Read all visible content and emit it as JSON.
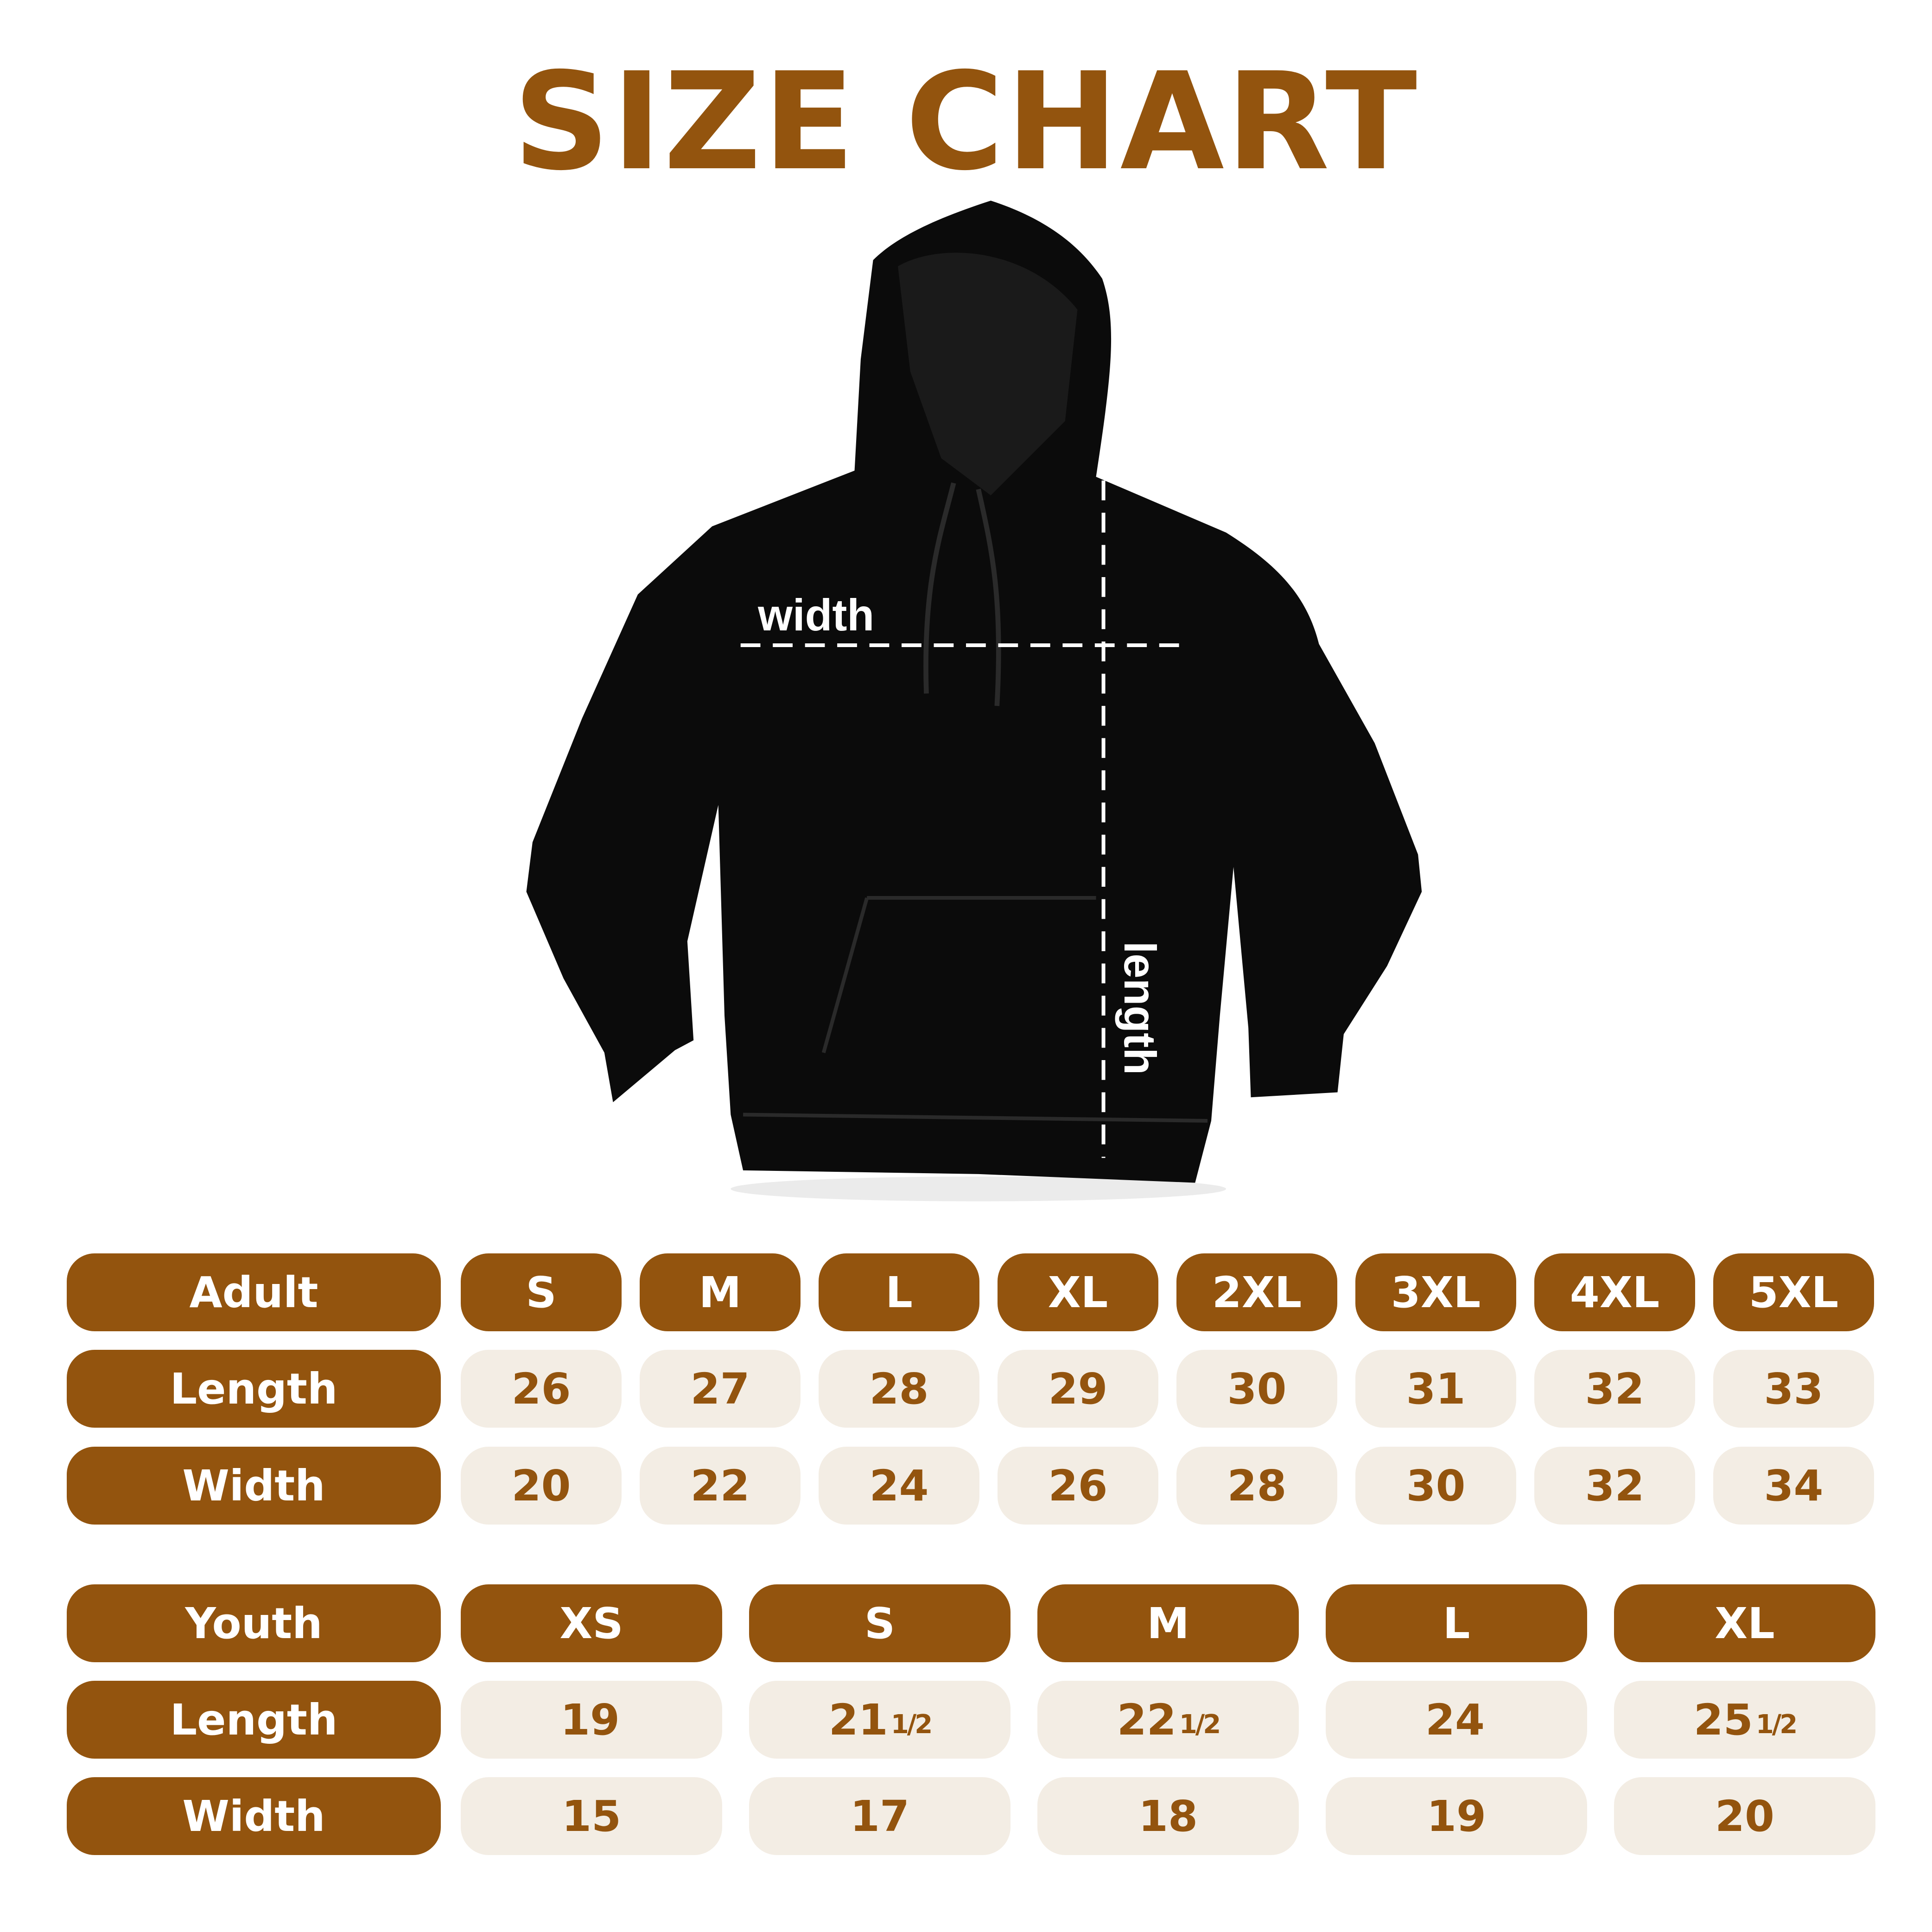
{
  "title": "SIZE CHART",
  "annotations": {
    "width": "width",
    "length": "length"
  },
  "colors": {
    "brand": "#93540e",
    "cell_bg": "#f3ede4",
    "garment": "#0b0b0b"
  },
  "adult": {
    "header": "Adult",
    "length_label": "Length",
    "width_label": "Width",
    "sizes": [
      "S",
      "M",
      "L",
      "XL",
      "2XL",
      "3XL",
      "4XL",
      "5XL"
    ],
    "length": [
      "26",
      "27",
      "28",
      "29",
      "30",
      "31",
      "32",
      "33"
    ],
    "width": [
      "20",
      "22",
      "24",
      "26",
      "28",
      "30",
      "32",
      "34"
    ]
  },
  "youth": {
    "header": "Youth",
    "length_label": "Length",
    "width_label": "Width",
    "sizes": [
      "XS",
      "S",
      "M",
      "L",
      "XL"
    ],
    "length": [
      {
        "whole": "19",
        "frac": ""
      },
      {
        "whole": "21",
        "frac": "1/2"
      },
      {
        "whole": "22",
        "frac": "1/2"
      },
      {
        "whole": "24",
        "frac": ""
      },
      {
        "whole": "25",
        "frac": "1/2"
      }
    ],
    "width": [
      "15",
      "17",
      "18",
      "19",
      "20"
    ]
  }
}
